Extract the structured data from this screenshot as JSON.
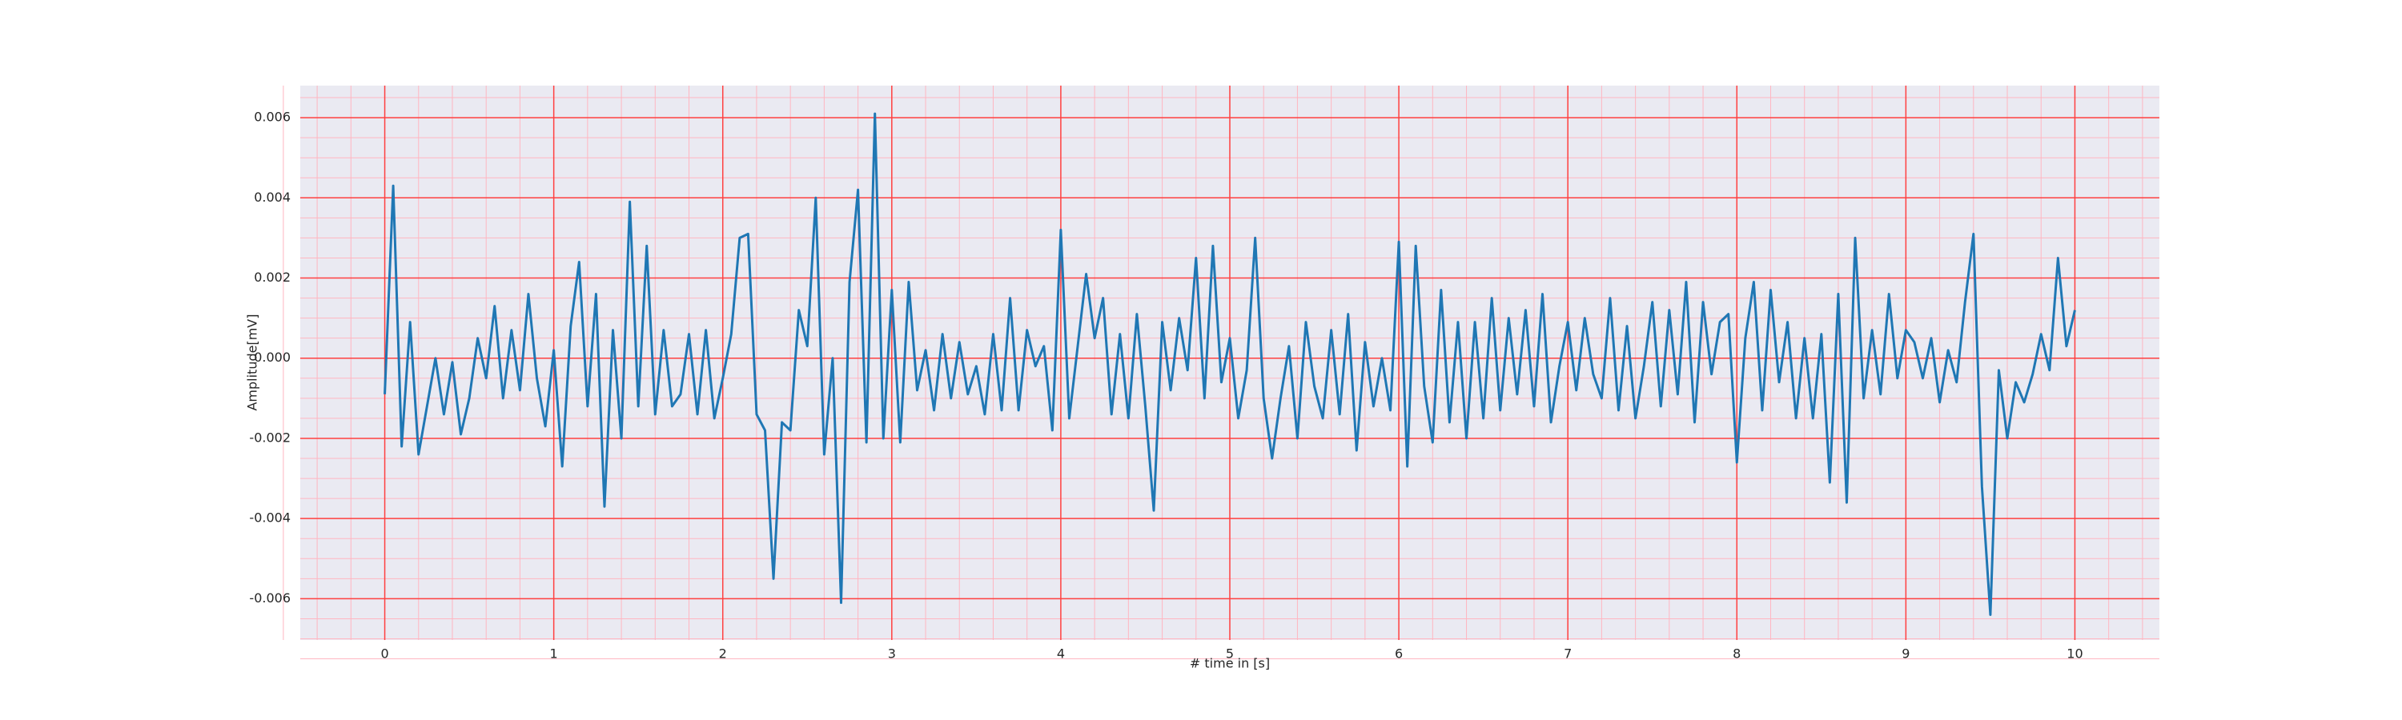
{
  "chart_data": {
    "type": "line",
    "xlabel": "# time in [s]",
    "ylabel": "Amplitude[mV]",
    "x": [
      0,
      0.05,
      0.1,
      0.15,
      0.2,
      0.25,
      0.3,
      0.35,
      0.4,
      0.45,
      0.5,
      0.55,
      0.6,
      0.65,
      0.7,
      0.75,
      0.8,
      0.85,
      0.9,
      0.95,
      1,
      1.05,
      1.1,
      1.15,
      1.2,
      1.25,
      1.3,
      1.35,
      1.4,
      1.45,
      1.5,
      1.55,
      1.6,
      1.65,
      1.7,
      1.75,
      1.8,
      1.85,
      1.9,
      1.95,
      2,
      2.05,
      2.1,
      2.15,
      2.2,
      2.25,
      2.3,
      2.35,
      2.4,
      2.45,
      2.5,
      2.55,
      2.6,
      2.65,
      2.7,
      2.75,
      2.8,
      2.85,
      2.9,
      2.95,
      3,
      3.05,
      3.1,
      3.15,
      3.2,
      3.25,
      3.3,
      3.35,
      3.4,
      3.45,
      3.5,
      3.55,
      3.6,
      3.65,
      3.7,
      3.75,
      3.8,
      3.85,
      3.9,
      3.95,
      4,
      4.05,
      4.1,
      4.15,
      4.2,
      4.25,
      4.3,
      4.35,
      4.4,
      4.45,
      4.5,
      4.55,
      4.6,
      4.65,
      4.7,
      4.75,
      4.8,
      4.85,
      4.9,
      4.95,
      5,
      5.05,
      5.1,
      5.15,
      5.2,
      5.25,
      5.3,
      5.35,
      5.4,
      5.45,
      5.5,
      5.55,
      5.6,
      5.65,
      5.7,
      5.75,
      5.8,
      5.85,
      5.9,
      5.95,
      6,
      6.05,
      6.1,
      6.15,
      6.2,
      6.25,
      6.3,
      6.35,
      6.4,
      6.45,
      6.5,
      6.55,
      6.6,
      6.65,
      6.7,
      6.75,
      6.8,
      6.85,
      6.9,
      6.95,
      7,
      7.05,
      7.1,
      7.15,
      7.2,
      7.25,
      7.3,
      7.35,
      7.4,
      7.45,
      7.5,
      7.55,
      7.6,
      7.65,
      7.7,
      7.75,
      7.8,
      7.85,
      7.9,
      7.95,
      8,
      8.05,
      8.1,
      8.15,
      8.2,
      8.25,
      8.3,
      8.35,
      8.4,
      8.45,
      8.5,
      8.55,
      8.6,
      8.65,
      8.7,
      8.75,
      8.8,
      8.85,
      8.9,
      8.95,
      9,
      9.05,
      9.1,
      9.15,
      9.2,
      9.25,
      9.3,
      9.35,
      9.4,
      9.45,
      9.5,
      9.55,
      9.6,
      9.65,
      9.7,
      9.75,
      9.8,
      9.85,
      9.9,
      9.95,
      10
    ],
    "series": [
      {
        "color": "#1f77b4",
        "values": [
          -0.0009,
          0.0043,
          -0.0022,
          0.0009,
          -0.0024,
          -0.0012,
          0,
          -0.0014,
          -0.0001,
          -0.0019,
          -0.001,
          0.0005,
          -0.0005,
          0.0013,
          -0.001,
          0.0007,
          -0.0008,
          0.0016,
          -0.0005,
          -0.0017,
          0.0002,
          -0.0027,
          0.0008,
          0.0024,
          -0.0012,
          0.0016,
          -0.0037,
          0.0007,
          -0.002,
          0.0039,
          -0.0012,
          0.0028,
          -0.0014,
          0.0007,
          -0.0012,
          -0.0009,
          0.0006,
          -0.0014,
          0.0007,
          -0.0015,
          -0.0005,
          0.0006,
          0.003,
          0.0031,
          -0.0014,
          -0.0018,
          -0.0055,
          -0.0016,
          -0.0018,
          0.0012,
          0.0003,
          0.004,
          -0.0024,
          0,
          -0.0061,
          0.0019,
          0.0042,
          -0.0021,
          0.0061,
          -0.002,
          0.0017,
          -0.0021,
          0.0019,
          -0.0008,
          0.0002,
          -0.0013,
          0.0006,
          -0.001,
          0.0004,
          -0.0009,
          -0.0002,
          -0.0014,
          0.0006,
          -0.0013,
          0.0015,
          -0.0013,
          0.0007,
          -0.0002,
          0.0003,
          -0.0018,
          0.0032,
          -0.0015,
          0.0003,
          0.0021,
          0.0005,
          0.0015,
          -0.0014,
          0.0006,
          -0.0015,
          0.0011,
          -0.0012,
          -0.0038,
          0.0009,
          -0.0008,
          0.001,
          -0.0003,
          0.0025,
          -0.001,
          0.0028,
          -0.0006,
          0.0005,
          -0.0015,
          -0.0003,
          0.003,
          -0.001,
          -0.0025,
          -0.001,
          0.0003,
          -0.002,
          0.0009,
          -0.0007,
          -0.0015,
          0.0007,
          -0.0014,
          0.0011,
          -0.0023,
          0.0004,
          -0.0012,
          0,
          -0.0013,
          0.0029,
          -0.0027,
          0.0028,
          -0.0007,
          -0.0021,
          0.0017,
          -0.0016,
          0.0009,
          -0.002,
          0.0009,
          -0.0015,
          0.0015,
          -0.0013,
          0.001,
          -0.0009,
          0.0012,
          -0.0012,
          0.0016,
          -0.0016,
          -0.0002,
          0.0009,
          -0.0008,
          0.001,
          -0.0004,
          -0.001,
          0.0015,
          -0.0013,
          0.0008,
          -0.0015,
          -0.0002,
          0.0014,
          -0.0012,
          0.0012,
          -0.0009,
          0.0019,
          -0.0016,
          0.0014,
          -0.0004,
          0.0009,
          0.0011,
          -0.0026,
          0.0005,
          0.0019,
          -0.0013,
          0.0017,
          -0.0006,
          0.0009,
          -0.0015,
          0.0005,
          -0.0015,
          0.0006,
          -0.0031,
          0.0016,
          -0.0036,
          0.003,
          -0.001,
          0.0007,
          -0.0009,
          0.0016,
          -0.0005,
          0.0007,
          0.0004,
          -0.0005,
          0.0005,
          -0.0011,
          0.0002,
          -0.0006,
          0.0014,
          0.0031,
          -0.0032,
          -0.0064,
          -0.0003,
          -0.002,
          -0.0006,
          -0.0011,
          -0.0004,
          0.0006,
          -0.0003,
          0.0025,
          0.0003,
          0.0012
        ]
      }
    ],
    "xlim": [
      -0.5,
      10.5
    ],
    "ylim": [
      -0.00703,
      0.0068
    ],
    "xticks": [
      0,
      1,
      2,
      3,
      4,
      5,
      6,
      7,
      8,
      9,
      10
    ],
    "yticks": [
      -0.006,
      -0.004,
      -0.002,
      {
        "value": 0,
        "label": "0.000"
      },
      0.002,
      0.004,
      0.006
    ],
    "grid": true,
    "minor_grid": true
  }
}
